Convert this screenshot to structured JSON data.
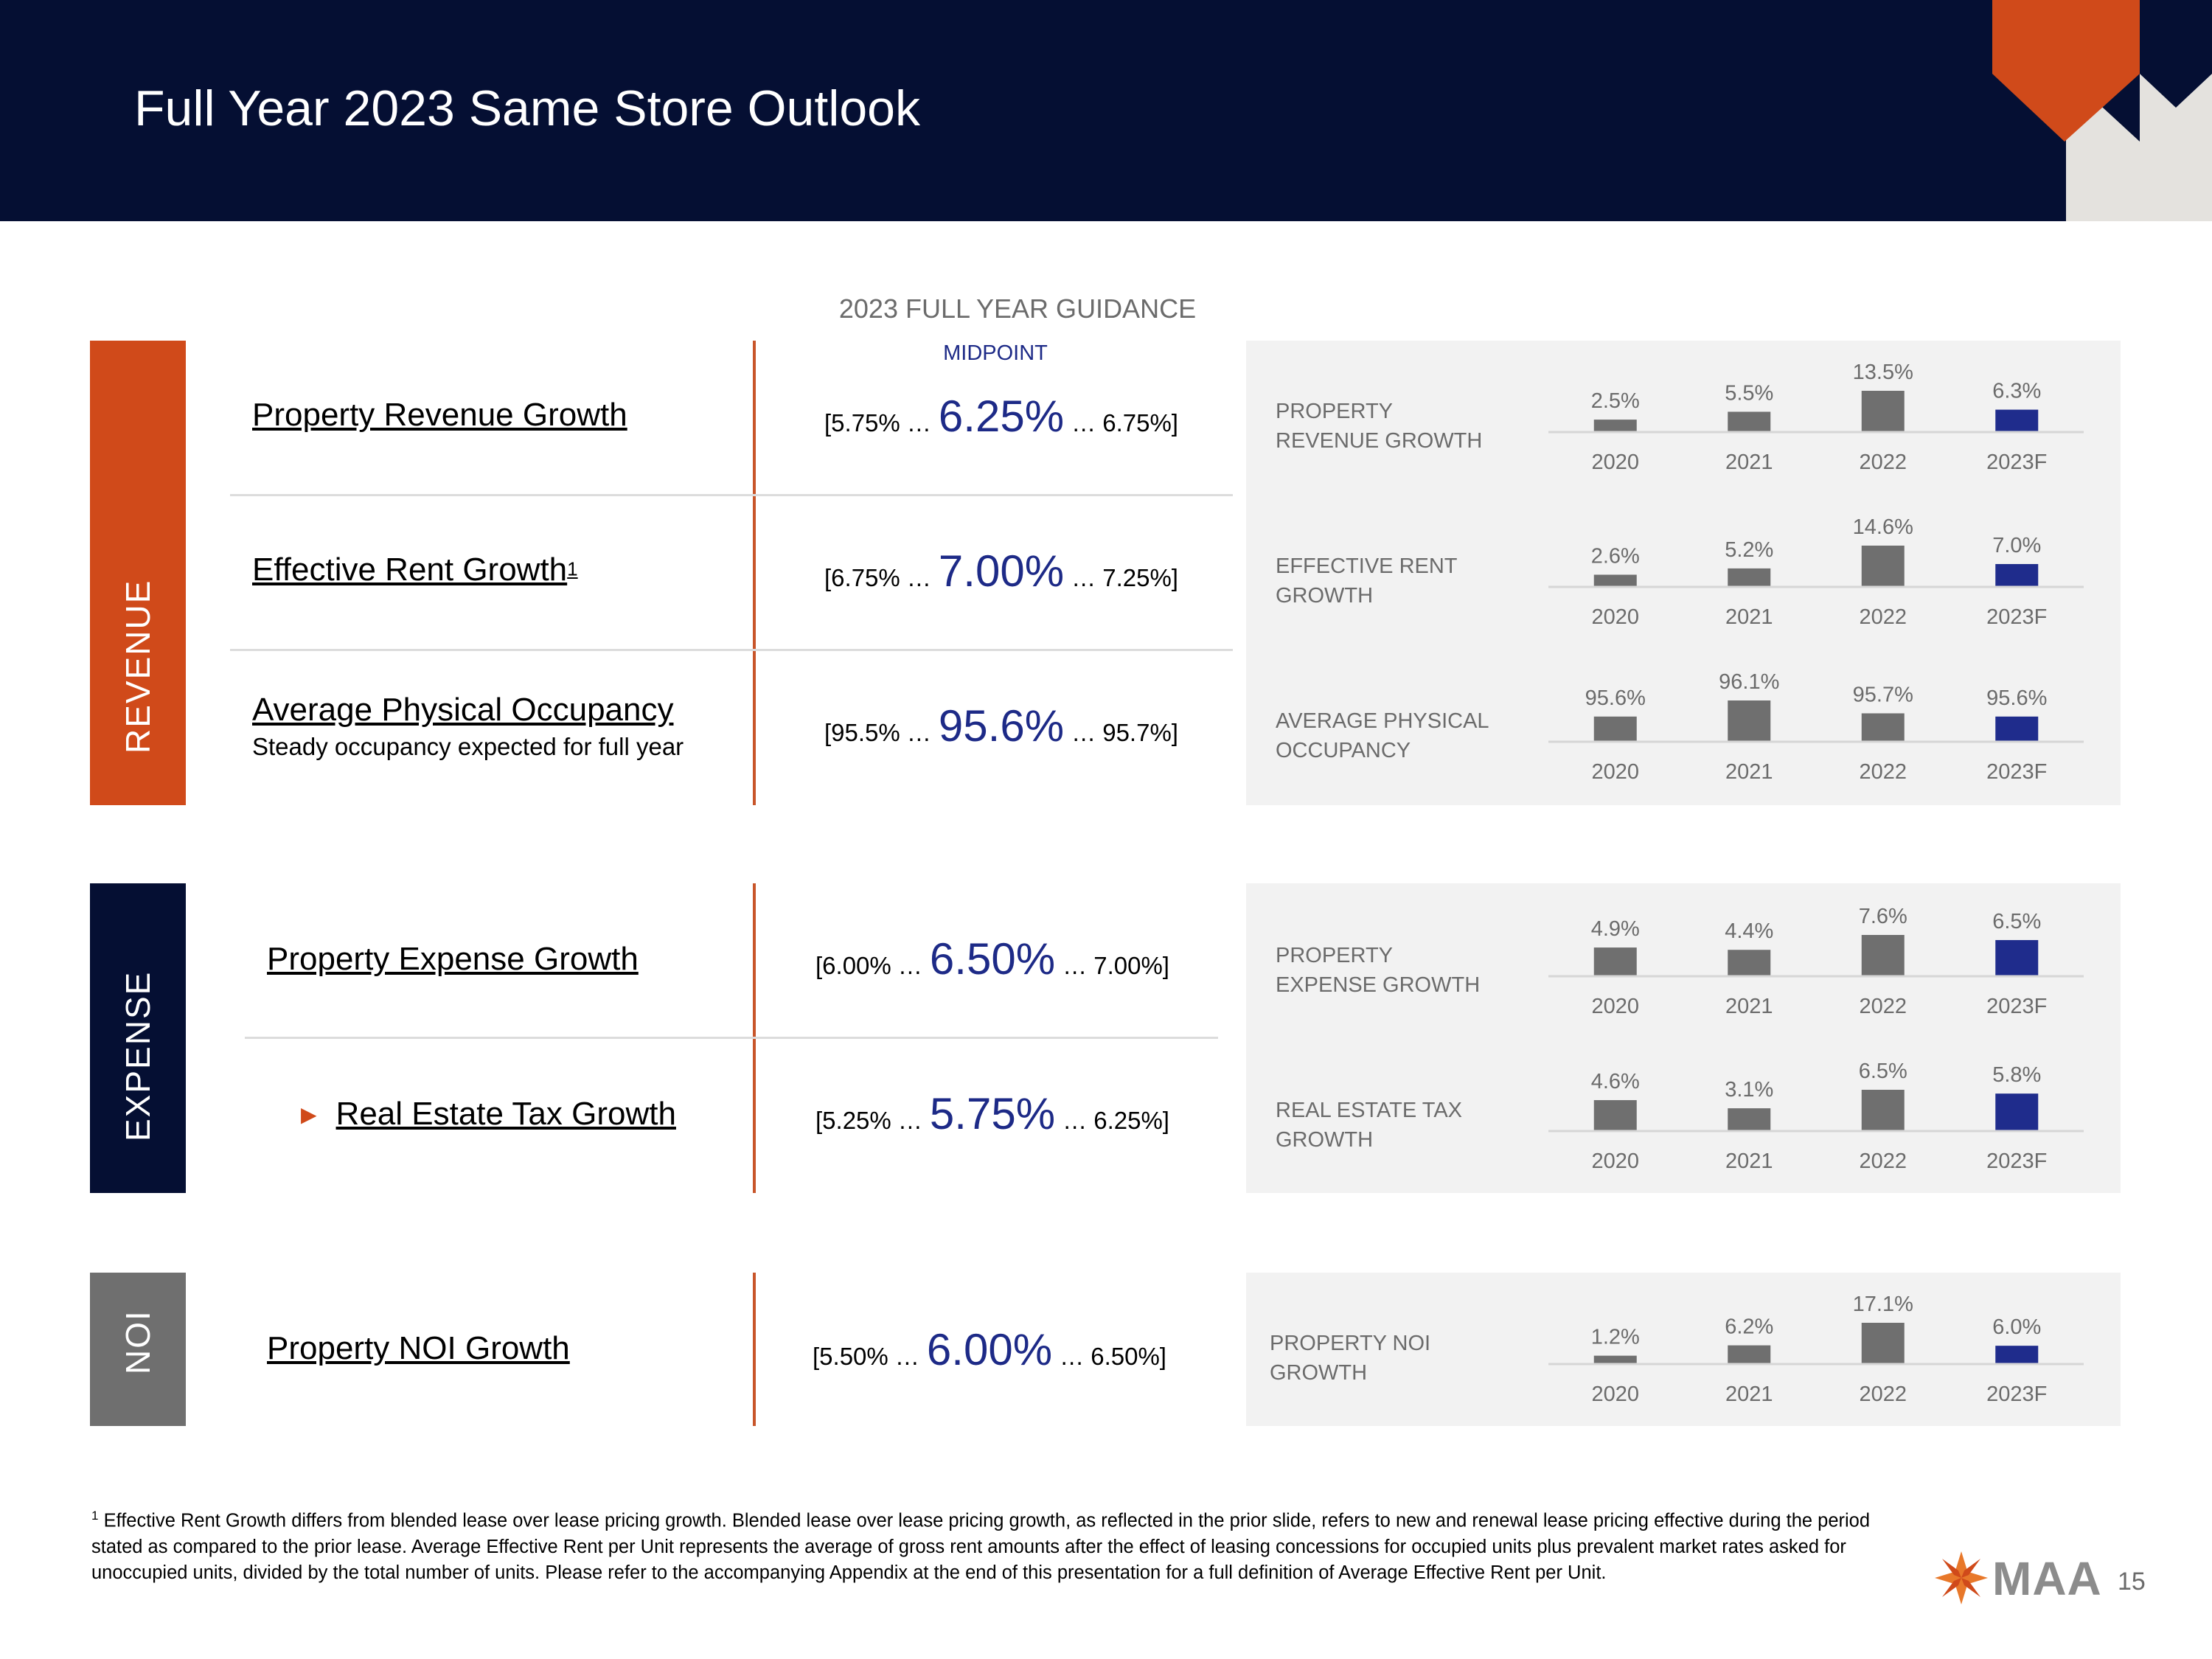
{
  "header": {
    "title": "Full Year 2023 Same Store Outlook"
  },
  "guidance": {
    "heading": "2023 FULL YEAR GUIDANCE",
    "midpoint_label": "MIDPOINT"
  },
  "sections": {
    "revenue": "REVENUE",
    "expense": "EXPENSE",
    "noi": "NOI"
  },
  "rows": [
    {
      "metric": "Property Revenue Growth",
      "sup": "",
      "subtext": "",
      "low": "[5.75% …",
      "mid": "6.25%",
      "high": "… 6.75%]",
      "panel_label": "PROPERTY REVENUE GROWTH"
    },
    {
      "metric": "Effective Rent Growth",
      "sup": "1",
      "subtext": "",
      "low": "[6.75% …",
      "mid": "7.00%",
      "high": "… 7.25%]",
      "panel_label": "EFFECTIVE RENT GROWTH"
    },
    {
      "metric": "Average Physical Occupancy",
      "sup": "",
      "subtext": "Steady occupancy expected for full year",
      "low": "[95.5% …",
      "mid": "95.6%",
      "high": "… 95.7%]",
      "panel_label": "AVERAGE PHYSICAL OCCUPANCY"
    },
    {
      "metric": "Property Expense Growth",
      "sup": "",
      "subtext": "",
      "low": "[6.00% …",
      "mid": "6.50%",
      "high": "… 7.00%]",
      "panel_label": "PROPERTY EXPENSE GROWTH"
    },
    {
      "metric": "Real Estate Tax Growth",
      "sup": "",
      "subtext": "",
      "low": "[5.25% …",
      "mid": "5.75%",
      "high": "… 6.25%]",
      "panel_label": "REAL ESTATE TAX GROWTH"
    },
    {
      "metric": "Property NOI Growth",
      "sup": "",
      "subtext": "",
      "low": "[5.50% …",
      "mid": "6.00%",
      "high": "… 6.50%]",
      "panel_label": "PROPERTY NOI GROWTH"
    }
  ],
  "colors": {
    "historical": "#6f6f6f",
    "forecast": "#1f2c8c",
    "revenue": "#d04a1a",
    "expense": "#050f33",
    "noi": "#6f6f6f"
  },
  "chart_data": [
    {
      "type": "bar",
      "title": "PROPERTY REVENUE GROWTH",
      "categories": [
        "2020",
        "2021",
        "2022",
        "2023F"
      ],
      "values": [
        2.5,
        5.5,
        13.5,
        6.3
      ],
      "labels": [
        "2.5%",
        "5.5%",
        "13.5%",
        "6.3%"
      ],
      "min": 0,
      "max": 13.5
    },
    {
      "type": "bar",
      "title": "EFFECTIVE RENT GROWTH",
      "categories": [
        "2020",
        "2021",
        "2022",
        "2023F"
      ],
      "values": [
        2.6,
        5.2,
        14.6,
        7.0
      ],
      "labels": [
        "2.6%",
        "5.2%",
        "14.6%",
        "7.0%"
      ],
      "min": 0,
      "max": 14.6
    },
    {
      "type": "bar",
      "title": "AVERAGE PHYSICAL OCCUPANCY",
      "categories": [
        "2020",
        "2021",
        "2022",
        "2023F"
      ],
      "values": [
        95.6,
        96.1,
        95.7,
        95.6
      ],
      "labels": [
        "95.6%",
        "96.1%",
        "95.7%",
        "95.6%"
      ],
      "min": 95.0,
      "max": 96.1
    },
    {
      "type": "bar",
      "title": "PROPERTY EXPENSE GROWTH",
      "categories": [
        "2020",
        "2021",
        "2022",
        "2023F"
      ],
      "values": [
        4.9,
        4.4,
        7.6,
        6.5
      ],
      "labels": [
        "4.9%",
        "4.4%",
        "7.6%",
        "6.5%"
      ],
      "min": 0,
      "max": 7.6
    },
    {
      "type": "bar",
      "title": "REAL ESTATE TAX GROWTH",
      "categories": [
        "2020",
        "2021",
        "2022",
        "2023F"
      ],
      "values": [
        4.6,
        3.1,
        6.5,
        5.8
      ],
      "labels": [
        "4.6%",
        "3.1%",
        "6.5%",
        "5.8%"
      ],
      "min": 0,
      "max": 6.5
    },
    {
      "type": "bar",
      "title": "PROPERTY NOI GROWTH",
      "categories": [
        "2020",
        "2021",
        "2022",
        "2023F"
      ],
      "values": [
        1.2,
        6.2,
        17.1,
        6.0
      ],
      "labels": [
        "1.2%",
        "6.2%",
        "17.1%",
        "6.0%"
      ],
      "min": 0,
      "max": 17.1
    }
  ],
  "footnote": {
    "sup": "1",
    "text": "Effective Rent Growth differs from blended lease over lease pricing growth. Blended lease over lease pricing growth, as reflected in the prior slide, refers to new and renewal lease pricing effective during the period stated as compared to the prior lease. Average Effective Rent per Unit represents the average of gross rent amounts after the effect of leasing concessions for occupied units plus prevalent market rates asked for unoccupied units, divided by the total number of units. Please refer to the accompanying Appendix at the end of this presentation for a full definition of Average Effective Rent per Unit."
  },
  "logo": {
    "text": "MAA",
    "icon": "maa-star-logo"
  },
  "page_number": "15"
}
